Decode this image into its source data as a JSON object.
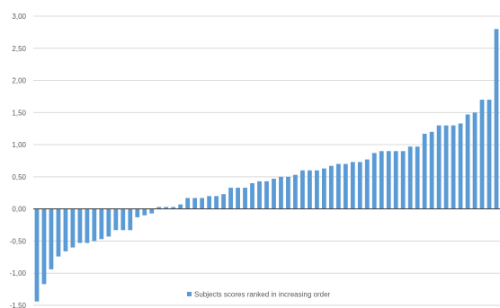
{
  "chart_data": {
    "type": "bar",
    "title": "",
    "xlabel": "",
    "ylabel": "",
    "ylim": [
      -1.5,
      3.0
    ],
    "y_ticks": [
      "3,00",
      "2,50",
      "2,00",
      "1,50",
      "1,00",
      "0,50",
      "0,00",
      "-0,50",
      "-1,00",
      "-1,50"
    ],
    "y_tick_values": [
      3.0,
      2.5,
      2.0,
      1.5,
      1.0,
      0.5,
      0.0,
      -0.5,
      -1.0,
      -1.5
    ],
    "grid": "horizontal",
    "legend_position": "bottom-center",
    "bar_color": "#5b9bd5",
    "series": [
      {
        "name": "Subjects scores ranked in increasing order",
        "values": [
          -1.44,
          -1.17,
          -0.94,
          -0.74,
          -0.66,
          -0.6,
          -0.53,
          -0.53,
          -0.5,
          -0.47,
          -0.43,
          -0.33,
          -0.33,
          -0.33,
          -0.13,
          -0.1,
          -0.07,
          0.03,
          0.03,
          0.03,
          0.07,
          0.17,
          0.17,
          0.17,
          0.2,
          0.2,
          0.23,
          0.33,
          0.33,
          0.33,
          0.4,
          0.43,
          0.43,
          0.47,
          0.5,
          0.5,
          0.53,
          0.6,
          0.6,
          0.6,
          0.63,
          0.67,
          0.7,
          0.7,
          0.73,
          0.73,
          0.77,
          0.87,
          0.9,
          0.9,
          0.9,
          0.9,
          0.97,
          0.97,
          1.17,
          1.2,
          1.3,
          1.3,
          1.3,
          1.33,
          1.47,
          1.5,
          1.7,
          1.7,
          2.8
        ]
      }
    ]
  }
}
